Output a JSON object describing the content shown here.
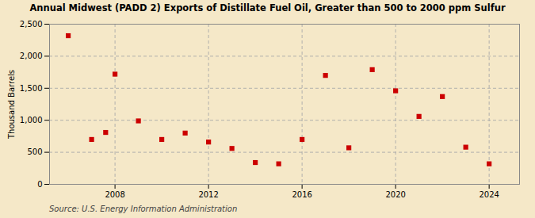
{
  "chart_data": {
    "type": "scatter",
    "title": "Annual Midwest (PADD 2) Exports of Distillate Fuel Oil, Greater than 500 to 2000 ppm Sulfur",
    "ylabel": "Thousand Barrels",
    "source": "Source: U.S. Energy Information Administration",
    "x": [
      2006,
      2007,
      2007.6,
      2008,
      2009,
      2010,
      2011,
      2012,
      2013,
      2014,
      2015,
      2016,
      2017,
      2018,
      2019,
      2020,
      2021,
      2022,
      2023,
      2024
    ],
    "values": [
      2320,
      700,
      810,
      1720,
      990,
      700,
      800,
      660,
      560,
      340,
      320,
      700,
      1700,
      570,
      1790,
      1460,
      1060,
      1370,
      580,
      320
    ],
    "color": "#cc0000",
    "marker": "square",
    "xlim": [
      2005.2,
      2025.3
    ],
    "xticks": [
      2008,
      2012,
      2016,
      2020,
      2024
    ],
    "ylim": [
      0,
      2500
    ],
    "yticks": [
      0,
      500,
      {
        "value": 1000,
        "label": "1,000"
      },
      {
        "value": 1500,
        "label": "1,500"
      },
      {
        "value": 2000,
        "label": "2,000"
      },
      {
        "value": 2500,
        "label": "2,500"
      }
    ],
    "grid": true
  }
}
